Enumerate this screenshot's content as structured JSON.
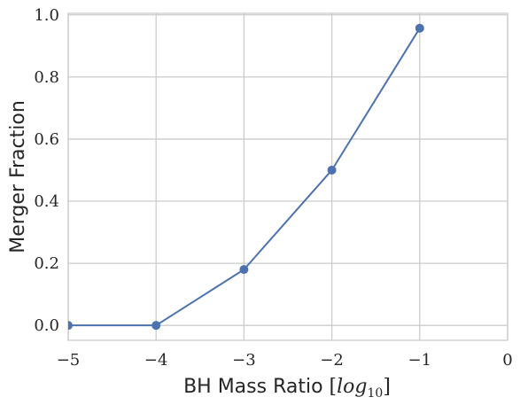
{
  "chart_data": {
    "type": "line",
    "xlabel": {
      "text": "BH Mass Ratio ",
      "math_open": "[",
      "math_var": "log",
      "math_sub": "10",
      "math_close": "]"
    },
    "ylabel": "Merger Fraction",
    "xlim": [
      -5,
      0
    ],
    "ylim": [
      -0.048,
      1.005
    ],
    "x_ticks": [
      -5,
      -4,
      -3,
      -2,
      -1,
      0
    ],
    "x_tick_labels": [
      "−5",
      "−4",
      "−3",
      "−2",
      "−1",
      "0"
    ],
    "y_ticks": [
      0.0,
      0.2,
      0.4,
      0.6,
      0.8,
      1.0
    ],
    "y_tick_labels": [
      "0.0",
      "0.2",
      "0.4",
      "0.6",
      "0.8",
      "1.0"
    ],
    "grid": true,
    "series": [
      {
        "x": [
          -5,
          -4,
          -3,
          -2,
          -1
        ],
        "values": [
          0.0,
          0.0,
          0.18,
          0.5,
          0.957
        ],
        "color": "#4c72b0",
        "marker": "circle"
      }
    ],
    "colors": {
      "grid": "#cccccc",
      "spine": "#cccccc",
      "line": "#4c72b0",
      "text": "#262626"
    }
  }
}
